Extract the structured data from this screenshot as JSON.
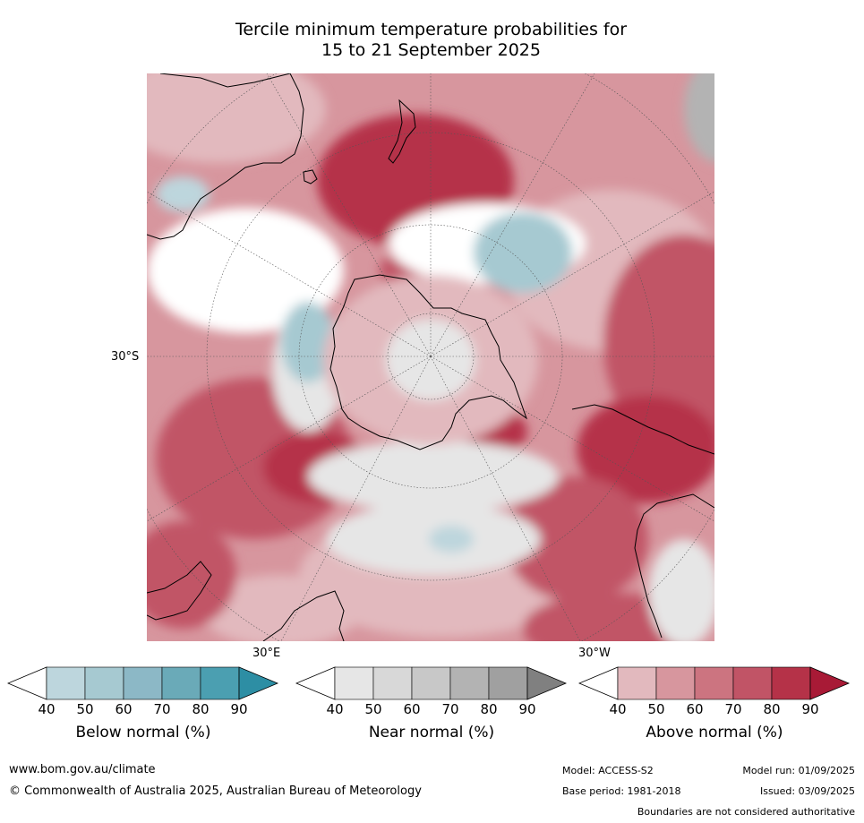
{
  "title": {
    "line1": "Tercile minimum temperature probabilities for",
    "line2": "15 to 21 September 2025"
  },
  "map": {
    "projection": "south-polar-stereographic",
    "labels": {
      "left": "30°S",
      "bottom_left": "30°E",
      "bottom_right": "30°W"
    }
  },
  "legend": {
    "below": {
      "label": "Below normal (%)",
      "ticks": [
        "40",
        "50",
        "60",
        "70",
        "80",
        "90"
      ],
      "colors": [
        "#ffffff",
        "#bdd6dd",
        "#a6c9d1",
        "#8cb8c6",
        "#6aaab8",
        "#4b9fb1",
        "#2d8ea4"
      ]
    },
    "near": {
      "label": "Near normal (%)",
      "ticks": [
        "40",
        "50",
        "60",
        "70",
        "80",
        "90"
      ],
      "colors": [
        "#ffffff",
        "#e6e6e6",
        "#d8d8d8",
        "#c8c8c8",
        "#b3b3b3",
        "#a0a0a0",
        "#808080"
      ]
    },
    "above": {
      "label": "Above normal (%)",
      "ticks": [
        "40",
        "50",
        "60",
        "70",
        "80",
        "90"
      ],
      "colors": [
        "#ffffff",
        "#e2b9be",
        "#d7969e",
        "#cc7480",
        "#c15466",
        "#b53248",
        "#a81a36"
      ]
    }
  },
  "footer": {
    "website": "www.bom.gov.au/climate",
    "copyright": "© Commonwealth of Australia 2025, Australian Bureau of Meteorology",
    "model": "Model: ACCESS-S2",
    "model_run": "Model run: 01/09/2025",
    "base_period": "Base period: 1981-2018",
    "issued": "Issued: 03/09/2025",
    "disclaimer": "Boundaries are not considered authoritative"
  }
}
